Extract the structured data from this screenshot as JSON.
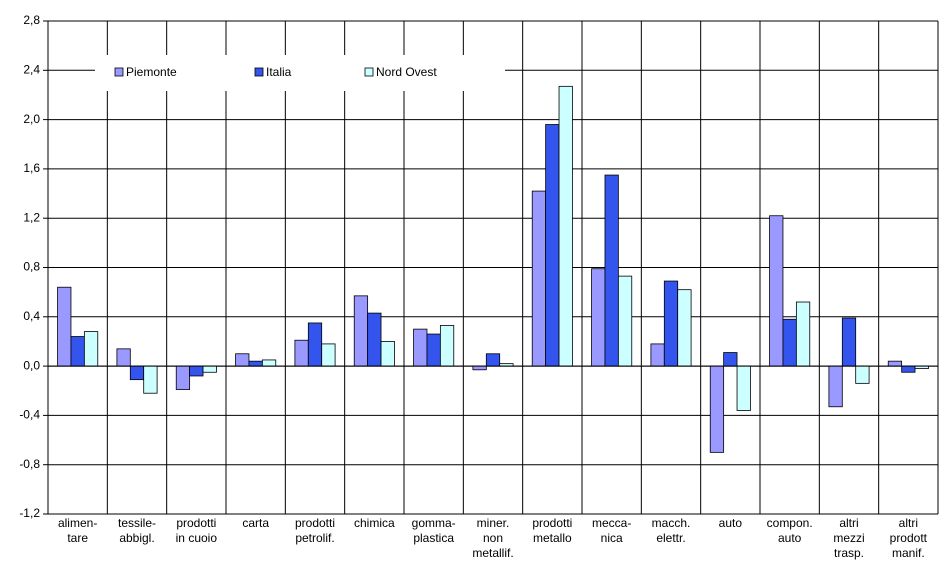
{
  "chart_data": {
    "type": "bar",
    "categories": [
      "alimen-\ntare",
      "tessile-\nabbigl.",
      "prodotti\nin cuoio",
      "carta",
      "prodotti\npetrolif.",
      "chimica",
      "gomma-\nplastica",
      "miner.\nnon\nmetallif.",
      "prodotti\nmetallo",
      "mecca-\nnica",
      "macch.\nelettr.",
      "auto",
      "compon.\nauto",
      "altri\nmezzi\ntrasp.",
      "altri\nprodott\nmanif."
    ],
    "series": [
      {
        "name": "Piemonte",
        "color": "#9999ff",
        "values": [
          0.64,
          0.14,
          -0.19,
          0.1,
          0.21,
          0.57,
          0.3,
          -0.03,
          1.42,
          0.79,
          0.18,
          -0.7,
          1.22,
          -0.33,
          0.04
        ]
      },
      {
        "name": "Italia",
        "color": "#3355ee",
        "values": [
          0.24,
          -0.11,
          -0.08,
          0.04,
          0.35,
          0.43,
          0.26,
          0.1,
          1.96,
          1.55,
          0.69,
          0.11,
          0.38,
          0.39,
          -0.05
        ]
      },
      {
        "name": "Nord Ovest",
        "color": "#ccffff",
        "values": [
          0.28,
          -0.22,
          -0.05,
          0.05,
          0.18,
          0.2,
          0.33,
          0.02,
          2.27,
          0.73,
          0.62,
          -0.36,
          0.52,
          -0.14,
          -0.02
        ]
      }
    ],
    "ylim": [
      -1.2,
      2.8
    ],
    "yticks": [
      {
        "value": -1.2,
        "label": "-1,2"
      },
      {
        "value": -0.8,
        "label": "-0,8"
      },
      {
        "value": -0.4,
        "label": "-0,4"
      },
      {
        "value": 0,
        "label": "0,0"
      },
      {
        "value": 0.4,
        "label": "0,4"
      },
      {
        "value": 0.8,
        "label": "0,8"
      },
      {
        "value": 1.2,
        "label": "1,2"
      },
      {
        "value": 1.6,
        "label": "1,6"
      },
      {
        "value": 2.0,
        "label": "2,0"
      },
      {
        "value": 2.4,
        "label": "2,4"
      },
      {
        "value": 2.8,
        "label": "2,8"
      }
    ],
    "grid": true,
    "legend": "top-left"
  }
}
